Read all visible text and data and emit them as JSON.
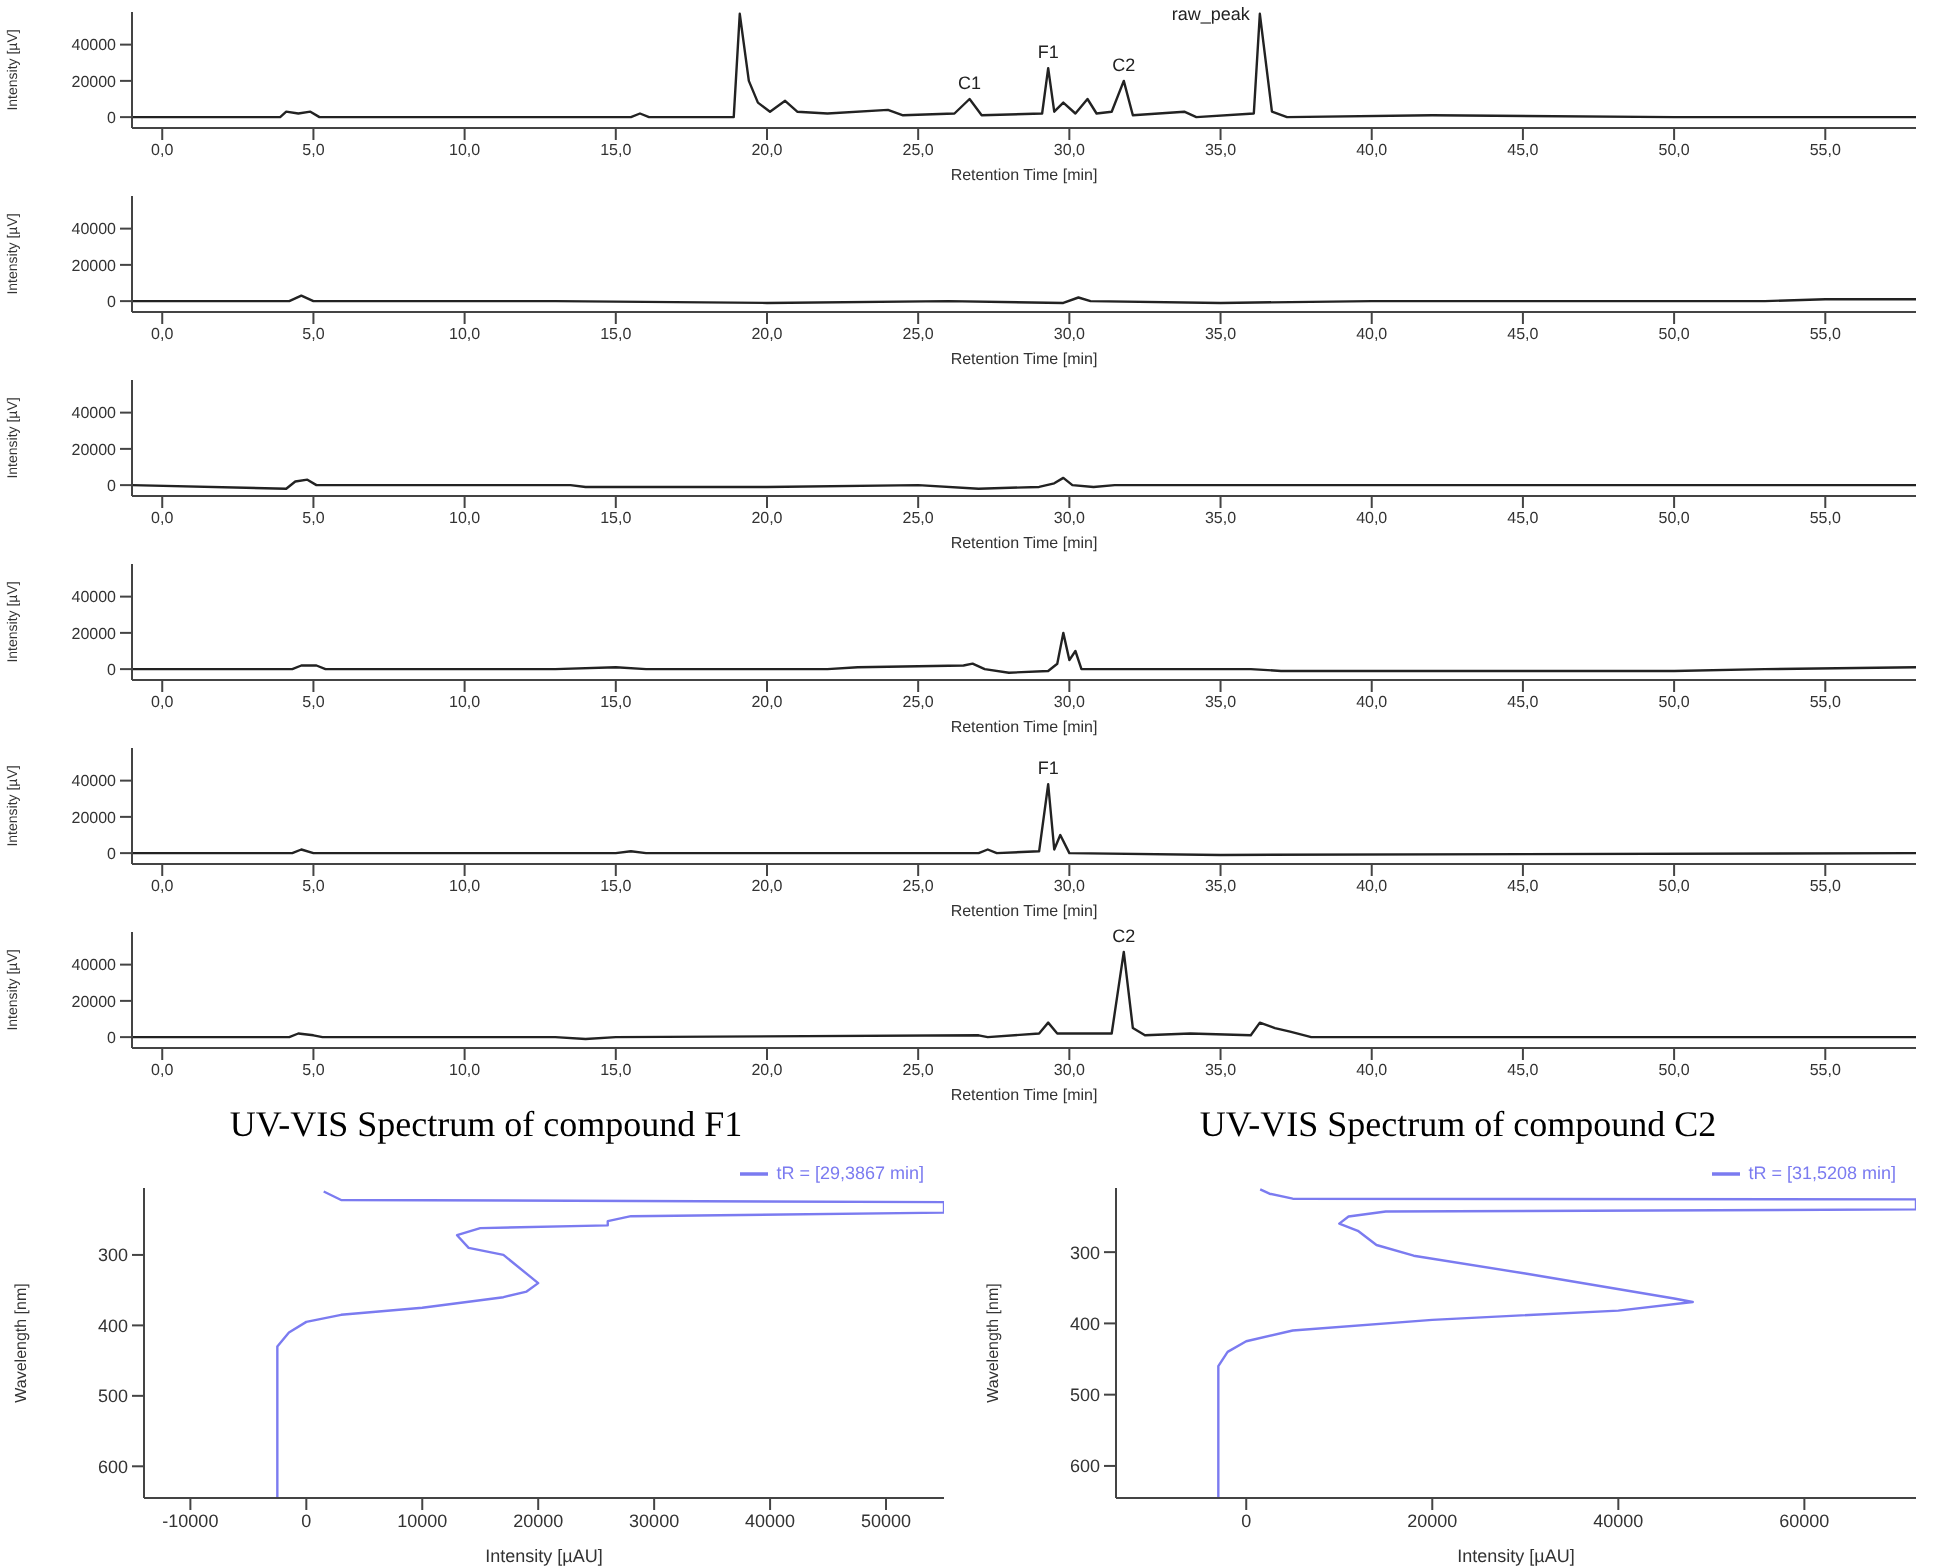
{
  "chart_data": [
    {
      "type": "line",
      "xlabel": "Retention Time [min]",
      "ylabel": "Intensity [µV]",
      "xlim": [
        -1,
        58
      ],
      "ylim": [
        -6000,
        58000
      ],
      "xticks": [
        {
          "value": 0,
          "label": "0,0"
        },
        {
          "value": 5,
          "label": "5,0"
        },
        {
          "value": 10,
          "label": "10,0"
        },
        {
          "value": 15,
          "label": "15,0"
        },
        {
          "value": 20,
          "label": "20,0"
        },
        {
          "value": 25,
          "label": "25,0"
        },
        {
          "value": 30,
          "label": "30,0"
        },
        {
          "value": 35,
          "label": "35,0"
        },
        {
          "value": 40,
          "label": "40,0"
        },
        {
          "value": 45,
          "label": "45,0"
        },
        {
          "value": 50,
          "label": "50,0"
        },
        {
          "value": 55,
          "label": "55,0"
        }
      ],
      "yticks": [
        0,
        20000,
        40000
      ],
      "annotations": [
        {
          "text": "C1",
          "x": 26.7,
          "y": 10000
        },
        {
          "text": "F1",
          "x": 29.3,
          "y": 27000
        },
        {
          "text": "C2",
          "x": 31.8,
          "y": 20000
        },
        {
          "text": "raw_peak",
          "x": 36.3,
          "y": 57000
        }
      ],
      "series": [
        {
          "color": "#222222",
          "x": [
            -1,
            3.9,
            4.1,
            4.5,
            4.9,
            5.2,
            15.5,
            15.8,
            16.1,
            18.9,
            19.1,
            19.4,
            19.7,
            20.1,
            20.6,
            21,
            22,
            24,
            24.5,
            26.2,
            26.7,
            27.1,
            29.1,
            29.3,
            29.5,
            29.8,
            30.2,
            30.6,
            30.9,
            31.4,
            31.8,
            32.1,
            33.8,
            34.2,
            36.1,
            36.3,
            36.7,
            37.2,
            42,
            50,
            58
          ],
          "values": [
            0,
            0,
            3000,
            2000,
            3000,
            0,
            0,
            2000,
            0,
            0,
            57000,
            20000,
            8000,
            3000,
            9000,
            3000,
            2000,
            4000,
            1000,
            2000,
            10000,
            1000,
            2000,
            27000,
            3000,
            8000,
            2000,
            10000,
            2000,
            3000,
            20000,
            1000,
            3000,
            0,
            2000,
            57000,
            3000,
            0,
            1000,
            0,
            0
          ]
        }
      ]
    },
    {
      "type": "line",
      "xlabel": "Retention Time [min]",
      "ylabel": "Intensity [µV]",
      "xlim": [
        -1,
        58
      ],
      "ylim": [
        -6000,
        58000
      ],
      "xticks": [
        {
          "value": 0,
          "label": "0,0"
        },
        {
          "value": 5,
          "label": "5,0"
        },
        {
          "value": 10,
          "label": "10,0"
        },
        {
          "value": 15,
          "label": "15,0"
        },
        {
          "value": 20,
          "label": "20,0"
        },
        {
          "value": 25,
          "label": "25,0"
        },
        {
          "value": 30,
          "label": "30,0"
        },
        {
          "value": 35,
          "label": "35,0"
        },
        {
          "value": 40,
          "label": "40,0"
        },
        {
          "value": 45,
          "label": "45,0"
        },
        {
          "value": 50,
          "label": "50,0"
        },
        {
          "value": 55,
          "label": "55,0"
        }
      ],
      "yticks": [
        0,
        20000,
        40000
      ],
      "series": [
        {
          "color": "#222222",
          "x": [
            -1,
            4.2,
            4.6,
            5,
            13,
            20,
            26,
            29.8,
            30.3,
            30.7,
            35,
            40,
            50,
            53,
            55,
            58
          ],
          "values": [
            0,
            0,
            3000,
            0,
            0,
            -1000,
            0,
            -1000,
            2000,
            0,
            -1000,
            0,
            0,
            0,
            1000,
            1000
          ]
        }
      ]
    },
    {
      "type": "line",
      "xlabel": "Retention Time [min]",
      "ylabel": "Intensity [µV]",
      "xlim": [
        -1,
        58
      ],
      "ylim": [
        -6000,
        58000
      ],
      "xticks": [
        {
          "value": 0,
          "label": "0,0"
        },
        {
          "value": 5,
          "label": "5,0"
        },
        {
          "value": 10,
          "label": "10,0"
        },
        {
          "value": 15,
          "label": "15,0"
        },
        {
          "value": 20,
          "label": "20,0"
        },
        {
          "value": 25,
          "label": "25,0"
        },
        {
          "value": 30,
          "label": "30,0"
        },
        {
          "value": 35,
          "label": "35,0"
        },
        {
          "value": 40,
          "label": "40,0"
        },
        {
          "value": 45,
          "label": "45,0"
        },
        {
          "value": 50,
          "label": "50,0"
        },
        {
          "value": 55,
          "label": "55,0"
        }
      ],
      "yticks": [
        0,
        20000,
        40000
      ],
      "series": [
        {
          "color": "#222222",
          "x": [
            -1,
            4.1,
            4.4,
            4.8,
            5.1,
            13.5,
            14,
            20,
            25,
            27,
            29,
            29.5,
            29.8,
            30.1,
            30.8,
            31.5,
            36,
            58
          ],
          "values": [
            0,
            -2000,
            2000,
            3000,
            0,
            0,
            -1000,
            -1000,
            0,
            -2000,
            -1000,
            1000,
            4000,
            0,
            -1000,
            0,
            0,
            0
          ]
        }
      ]
    },
    {
      "type": "line",
      "xlabel": "Retention Time [min]",
      "ylabel": "Intensity [µV]",
      "xlim": [
        -1,
        58
      ],
      "ylim": [
        -6000,
        58000
      ],
      "xticks": [
        {
          "value": 0,
          "label": "0,0"
        },
        {
          "value": 5,
          "label": "5,0"
        },
        {
          "value": 10,
          "label": "10,0"
        },
        {
          "value": 15,
          "label": "15,0"
        },
        {
          "value": 20,
          "label": "20,0"
        },
        {
          "value": 25,
          "label": "25,0"
        },
        {
          "value": 30,
          "label": "30,0"
        },
        {
          "value": 35,
          "label": "35,0"
        },
        {
          "value": 40,
          "label": "40,0"
        },
        {
          "value": 45,
          "label": "45,0"
        },
        {
          "value": 50,
          "label": "50,0"
        },
        {
          "value": 55,
          "label": "55,0"
        }
      ],
      "yticks": [
        0,
        20000,
        40000
      ],
      "series": [
        {
          "color": "#222222",
          "x": [
            -1,
            4.3,
            4.6,
            5.1,
            5.4,
            13,
            15,
            16,
            22,
            23,
            26.5,
            26.8,
            27.2,
            28,
            29.3,
            29.6,
            29.8,
            30,
            30.2,
            30.4,
            36,
            37,
            50,
            53,
            58
          ],
          "values": [
            0,
            0,
            2000,
            2000,
            0,
            0,
            1000,
            0,
            0,
            1000,
            2000,
            3000,
            0,
            -2000,
            -1000,
            3000,
            20000,
            5000,
            10000,
            0,
            0,
            -1000,
            -1000,
            0,
            1000
          ]
        }
      ]
    },
    {
      "type": "line",
      "xlabel": "Retention Time [min]",
      "ylabel": "Intensity [µV]",
      "xlim": [
        -1,
        58
      ],
      "ylim": [
        -6000,
        58000
      ],
      "xticks": [
        {
          "value": 0,
          "label": "0,0"
        },
        {
          "value": 5,
          "label": "5,0"
        },
        {
          "value": 10,
          "label": "10,0"
        },
        {
          "value": 15,
          "label": "15,0"
        },
        {
          "value": 20,
          "label": "20,0"
        },
        {
          "value": 25,
          "label": "25,0"
        },
        {
          "value": 30,
          "label": "30,0"
        },
        {
          "value": 35,
          "label": "35,0"
        },
        {
          "value": 40,
          "label": "40,0"
        },
        {
          "value": 45,
          "label": "45,0"
        },
        {
          "value": 50,
          "label": "50,0"
        },
        {
          "value": 55,
          "label": "55,0"
        }
      ],
      "yticks": [
        0,
        20000,
        40000
      ],
      "annotations": [
        {
          "text": "F1",
          "x": 29.3,
          "y": 38000
        }
      ],
      "series": [
        {
          "color": "#222222",
          "x": [
            -1,
            4.3,
            4.6,
            5,
            15,
            15.5,
            16,
            27,
            27.3,
            27.6,
            29,
            29.3,
            29.5,
            29.7,
            30,
            35,
            58
          ],
          "values": [
            0,
            0,
            2000,
            0,
            0,
            1000,
            0,
            0,
            2000,
            0,
            1000,
            38000,
            2000,
            10000,
            0,
            -1000,
            0
          ]
        }
      ]
    },
    {
      "type": "line",
      "xlabel": "Retention Time [min]",
      "ylabel": "Intensity [µV]",
      "xlim": [
        -1,
        58
      ],
      "ylim": [
        -6000,
        58000
      ],
      "xticks": [
        {
          "value": 0,
          "label": "0,0"
        },
        {
          "value": 5,
          "label": "5,0"
        },
        {
          "value": 10,
          "label": "10,0"
        },
        {
          "value": 15,
          "label": "15,0"
        },
        {
          "value": 20,
          "label": "20,0"
        },
        {
          "value": 25,
          "label": "25,0"
        },
        {
          "value": 30,
          "label": "30,0"
        },
        {
          "value": 35,
          "label": "35,0"
        },
        {
          "value": 40,
          "label": "40,0"
        },
        {
          "value": 45,
          "label": "45,0"
        },
        {
          "value": 50,
          "label": "50,0"
        },
        {
          "value": 55,
          "label": "55,0"
        }
      ],
      "yticks": [
        0,
        20000,
        40000
      ],
      "annotations": [
        {
          "text": "C2",
          "x": 31.8,
          "y": 47000
        }
      ],
      "series": [
        {
          "color": "#222222",
          "x": [
            -1,
            4.2,
            4.5,
            5,
            5.3,
            13,
            14,
            15,
            27,
            27.3,
            29,
            29.3,
            29.6,
            31.4,
            31.8,
            32.1,
            32.5,
            34,
            36,
            36.3,
            36.8,
            37.3,
            38,
            40,
            58
          ],
          "values": [
            0,
            0,
            2000,
            1000,
            0,
            0,
            -1000,
            0,
            1000,
            0,
            2000,
            8000,
            2000,
            2000,
            47000,
            5000,
            1000,
            2000,
            1000,
            8000,
            5000,
            3000,
            0,
            0,
            0
          ]
        }
      ]
    },
    {
      "type": "line",
      "title": "UV-VIS Spectrum of compound F1",
      "xlabel": "Intensity [µAU]",
      "ylabel": "Wavelength [nm]",
      "xlim": [
        -14000,
        55000
      ],
      "ylim": [
        645,
        205
      ],
      "xticks": [
        -10000,
        0,
        10000,
        20000,
        30000,
        40000,
        50000
      ],
      "yticks": [
        300,
        400,
        500,
        600
      ],
      "legend": "top right",
      "series": [
        {
          "name": "tR = [29,3867 min]",
          "color": "#7b7bf0",
          "x": [
            1500,
            3000,
            55000,
            55000,
            28000,
            26000,
            26000,
            15000,
            13000,
            14000,
            17000,
            20000,
            19000,
            17000,
            10000,
            3000,
            0,
            -1500,
            -2500,
            -2500,
            -2500
          ],
          "values": [
            210,
            222,
            225,
            240,
            245,
            252,
            258,
            262,
            272,
            290,
            300,
            340,
            352,
            360,
            375,
            385,
            395,
            410,
            430,
            500,
            645
          ]
        }
      ]
    },
    {
      "type": "line",
      "title": "UV-VIS Spectrum of compound C2",
      "xlabel": "Intensity [µAU]",
      "ylabel": "Wavelength [nm]",
      "xlim": [
        -14000,
        72000
      ],
      "ylim": [
        645,
        210
      ],
      "xticks": [
        0,
        20000,
        40000,
        60000
      ],
      "yticks": [
        300,
        400,
        500,
        600
      ],
      "legend": "top right",
      "series": [
        {
          "name": "tR = [31,5208 min]",
          "color": "#7b7bf0",
          "x": [
            1500,
            2500,
            5000,
            72000,
            72000,
            15000,
            11000,
            10000,
            12000,
            14000,
            18000,
            30000,
            46000,
            48000,
            40000,
            20000,
            5000,
            0,
            -2000,
            -3000,
            -3000
          ],
          "values": [
            212,
            218,
            225,
            226,
            240,
            243,
            250,
            260,
            270,
            290,
            305,
            330,
            365,
            370,
            382,
            395,
            410,
            425,
            440,
            460,
            645
          ]
        }
      ]
    }
  ]
}
